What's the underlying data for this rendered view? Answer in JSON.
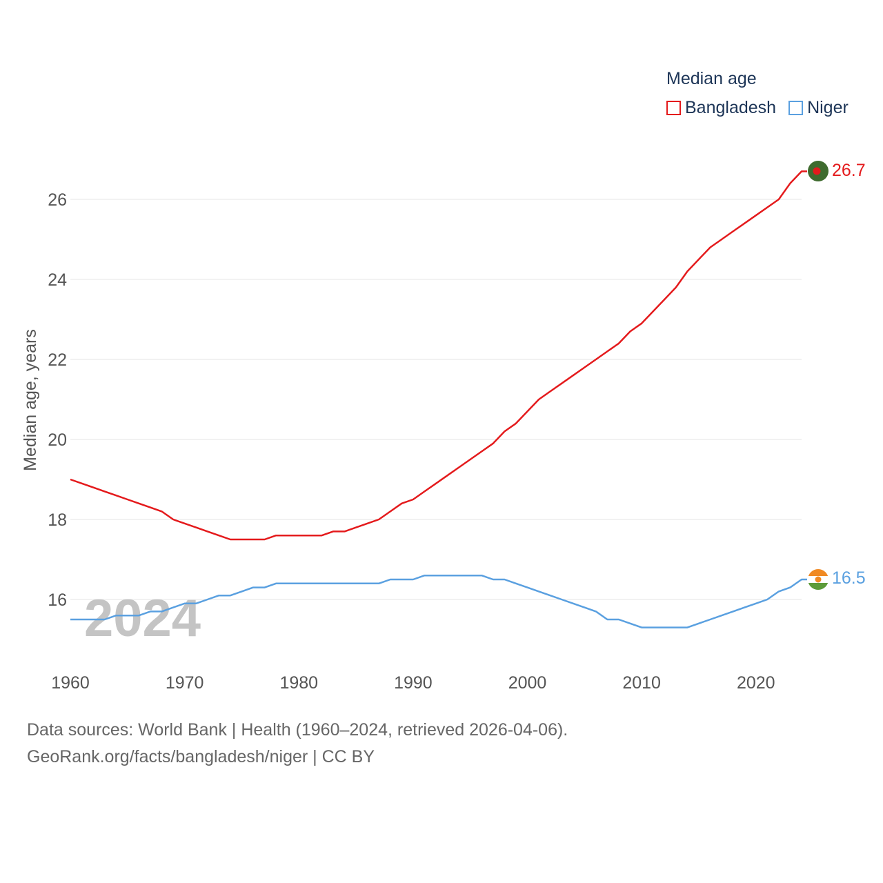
{
  "legend": {
    "title": "Median age",
    "items": [
      {
        "name": "Bangladesh",
        "color": "#e41a1c"
      },
      {
        "name": "Niger",
        "color": "#5aa0e0"
      }
    ]
  },
  "footer": {
    "line1": "Data sources: World Bank | Health (1960–2024, retrieved 2026-04-06).",
    "line2": "GeoRank.org/facts/bangladesh/niger | CC BY"
  },
  "year_watermark": "2024",
  "end_labels": {
    "bangladesh": "26.7",
    "niger": "16.5"
  },
  "chart_data": {
    "type": "line",
    "title": "Median age",
    "xlabel": "",
    "ylabel": "Median age, years",
    "xlim": [
      1960,
      2024
    ],
    "ylim": [
      14.8,
      27.5
    ],
    "yticks": [
      16,
      18,
      20,
      22,
      24,
      26
    ],
    "xticks": [
      1960,
      1970,
      1980,
      1990,
      2000,
      2010,
      2020
    ],
    "grid": true,
    "legend_position": "top-right",
    "x": [
      1960,
      1961,
      1962,
      1963,
      1964,
      1965,
      1966,
      1967,
      1968,
      1969,
      1970,
      1971,
      1972,
      1973,
      1974,
      1975,
      1976,
      1977,
      1978,
      1979,
      1980,
      1981,
      1982,
      1983,
      1984,
      1985,
      1986,
      1987,
      1988,
      1989,
      1990,
      1991,
      1992,
      1993,
      1994,
      1995,
      1996,
      1997,
      1998,
      1999,
      2000,
      2001,
      2002,
      2003,
      2004,
      2005,
      2006,
      2007,
      2008,
      2009,
      2010,
      2011,
      2012,
      2013,
      2014,
      2015,
      2016,
      2017,
      2018,
      2019,
      2020,
      2021,
      2022,
      2023,
      2024
    ],
    "series": [
      {
        "name": "Bangladesh",
        "color": "#e41a1c",
        "values": [
          19.0,
          18.9,
          18.8,
          18.7,
          18.6,
          18.5,
          18.4,
          18.3,
          18.2,
          18.0,
          17.9,
          17.8,
          17.7,
          17.6,
          17.5,
          17.5,
          17.5,
          17.5,
          17.6,
          17.6,
          17.6,
          17.6,
          17.6,
          17.7,
          17.7,
          17.8,
          17.9,
          18.0,
          18.2,
          18.4,
          18.5,
          18.7,
          18.9,
          19.1,
          19.3,
          19.5,
          19.7,
          19.9,
          20.2,
          20.4,
          20.7,
          21.0,
          21.2,
          21.4,
          21.6,
          21.8,
          22.0,
          22.2,
          22.4,
          22.7,
          22.9,
          23.2,
          23.5,
          23.8,
          24.2,
          24.5,
          24.8,
          25.0,
          25.2,
          25.4,
          25.6,
          25.8,
          26.0,
          26.4,
          26.7
        ]
      },
      {
        "name": "Niger",
        "color": "#5aa0e0",
        "values": [
          15.5,
          15.5,
          15.5,
          15.5,
          15.6,
          15.6,
          15.6,
          15.7,
          15.7,
          15.8,
          15.9,
          15.9,
          16.0,
          16.1,
          16.1,
          16.2,
          16.3,
          16.3,
          16.4,
          16.4,
          16.4,
          16.4,
          16.4,
          16.4,
          16.4,
          16.4,
          16.4,
          16.4,
          16.5,
          16.5,
          16.5,
          16.6,
          16.6,
          16.6,
          16.6,
          16.6,
          16.6,
          16.5,
          16.5,
          16.4,
          16.3,
          16.2,
          16.1,
          16.0,
          15.9,
          15.8,
          15.7,
          15.5,
          15.5,
          15.4,
          15.3,
          15.3,
          15.3,
          15.3,
          15.3,
          15.4,
          15.5,
          15.6,
          15.7,
          15.8,
          15.9,
          16.0,
          16.2,
          16.3,
          16.5
        ]
      }
    ]
  }
}
